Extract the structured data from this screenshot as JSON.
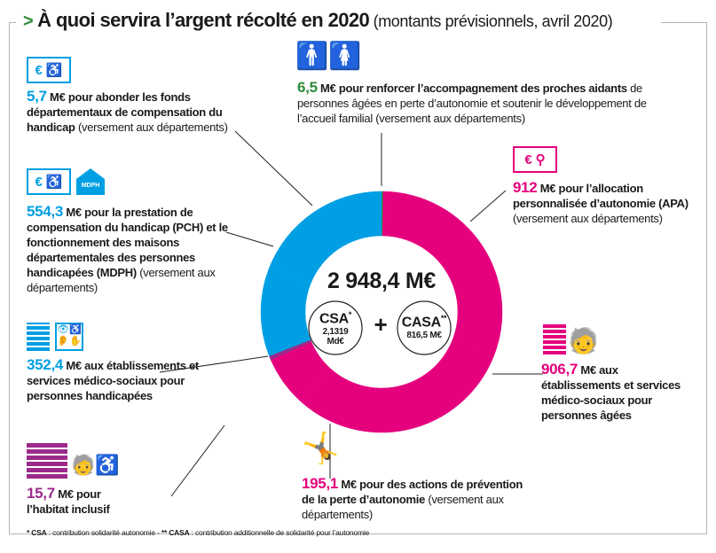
{
  "title": {
    "arrow": ">",
    "main": "À quoi servira l’argent récolté en 2020",
    "sub": "(montants prévisionnels, avril 2020)"
  },
  "colors": {
    "blue": "#009fe3",
    "magenta": "#e5007e",
    "green": "#2e8b3a",
    "purple": "#9b2a8a"
  },
  "items": [
    {
      "value": "5,7",
      "bold": "M€ pour abonder les fonds départementaux de compensation du handicap",
      "rest": "(versement aux départements)",
      "icons": [
        "euro-icon",
        "wheelchair-icon"
      ]
    },
    {
      "value": "6,5",
      "bold": "M€ pour renforcer l’accompagnement des proches aidants",
      "rest": "de personnes âgées en perte d’autonomie et soutenir le développement de l’accueil familial (versement aux départements)",
      "icons": [
        "man-icon",
        "woman-icon"
      ]
    },
    {
      "value": "912",
      "bold": "M€ pour l’allocation personnalisée d’autonomie (APA)",
      "rest": "(versement aux départements)",
      "icons": [
        "euro-icon",
        "elderly-person-icon"
      ]
    },
    {
      "value": "554,3",
      "bold": "M€ pour la prestation de compensation du handicap (PCH) et le fonctionnement des maisons départementales des personnes handicapées (MDPH)",
      "rest": "(versement aux départements)",
      "icons": [
        "euro-icon",
        "wheelchair-icon",
        "mdph-house-icon"
      ],
      "badge": "MDPH"
    },
    {
      "value": "352,4",
      "bold": "M€ aux établissements et services médico-sociaux pour personnes handicapées",
      "rest": "",
      "icons": [
        "building-icon",
        "disability-icons"
      ]
    },
    {
      "value": "906,7",
      "bold": "M€ aux établissements et services médico-sociaux pour personnes âgées",
      "rest": "",
      "icons": [
        "building-icon",
        "elderly-person-icon"
      ]
    },
    {
      "value": "15,7",
      "bold": "M€ pour l’habitat inclusif",
      "rest": "",
      "icons": [
        "building-icon",
        "elderly-person-icon",
        "wheelchair-icon"
      ]
    },
    {
      "value": "195,1",
      "bold": "M€ pour des actions de prévention de la perte d’autonomie",
      "rest": "(versement aux départements)",
      "icons": [
        "exercising-person-icon"
      ]
    }
  ],
  "center": {
    "total": "2 948,4 M€",
    "csa_label": "CSA",
    "csa_mark": "*",
    "csa_value": "2,1319 Md€",
    "plus": "+",
    "casa_label": "CASA",
    "casa_mark": "**",
    "casa_value": "816,5 M€"
  },
  "footnote": {
    "a": "* CSA",
    "a_text": " : contribution solidarité autonomie - ",
    "b": "** CASA",
    "b_text": " : contribution additionnelle de solidarité pour l’autonomie"
  },
  "chart_data": {
    "type": "pie",
    "donut": true,
    "unit": "M€",
    "total": 2948.4,
    "direction": "clockwise from top",
    "slices": [
      {
        "label": "proches aidants",
        "value": 6.5,
        "color": "#2e8b3a"
      },
      {
        "label": "APA",
        "value": 912,
        "color": "#e5007e"
      },
      {
        "label": "établissements personnes âgées",
        "value": 906.7,
        "color": "#e5007e"
      },
      {
        "label": "prévention perte d’autonomie",
        "value": 195.1,
        "color": "#e5007e"
      },
      {
        "label": "habitat inclusif",
        "value": 15.7,
        "color": "#9b2a8a"
      },
      {
        "label": "établissements personnes handicapées",
        "value": 352.4,
        "color": "#009fe3"
      },
      {
        "label": "PCH et MDPH",
        "value": 554.3,
        "color": "#009fe3"
      },
      {
        "label": "fonds départementaux de compensation du handicap",
        "value": 5.7,
        "color": "#009fe3"
      }
    ]
  }
}
